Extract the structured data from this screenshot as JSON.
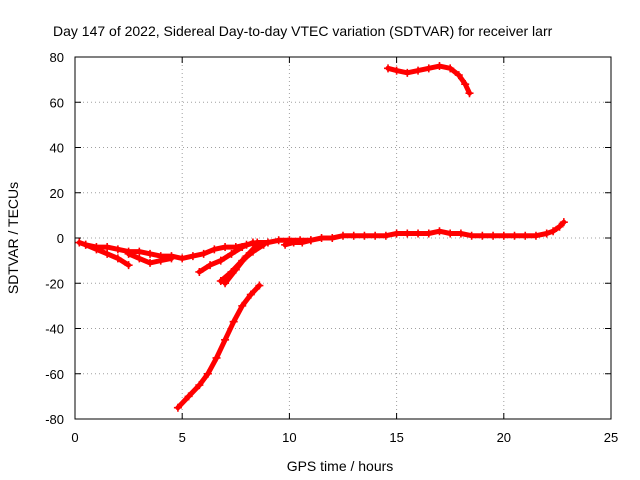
{
  "chart_data": {
    "type": "scatter",
    "title": "Day 147 of 2022, Sidereal Day-to-day VTEC variation (SDTVAR) for receiver larr",
    "xlabel": "GPS time / hours",
    "ylabel": "SDTVAR / TECUs",
    "xlim": [
      0,
      25
    ],
    "ylim": [
      -80,
      80
    ],
    "xticks": [
      0,
      5,
      10,
      15,
      20,
      25
    ],
    "yticks": [
      -80,
      -60,
      -40,
      -20,
      0,
      20,
      40,
      60,
      80
    ],
    "grid": true,
    "marker": "plus",
    "color": "#ff0000",
    "series": [
      {
        "name": "main-band",
        "x": [
          0.2,
          0.5,
          1.0,
          1.5,
          2.0,
          2.5,
          3.0,
          3.5,
          4.0,
          4.5,
          5.0,
          5.5,
          6.0,
          6.5,
          7.0,
          7.5,
          8.0,
          8.5,
          9.0,
          9.5,
          10.0,
          10.5,
          11.0,
          11.5,
          12.0,
          12.5,
          13.0,
          13.5,
          14.0,
          14.5,
          15.0,
          15.5,
          16.0,
          16.5,
          17.0,
          17.5,
          18.0,
          18.5,
          19.0,
          19.5,
          20.0,
          20.5,
          21.0,
          21.5,
          22.0,
          22.3,
          22.6,
          22.8
        ],
        "y": [
          -2,
          -3,
          -4,
          -4,
          -5,
          -6,
          -6,
          -7,
          -8,
          -8,
          -9,
          -8,
          -7,
          -5,
          -4,
          -4,
          -3,
          -2,
          -2,
          -1,
          -1,
          -1,
          -1,
          0,
          0,
          1,
          1,
          1,
          1,
          1,
          2,
          2,
          2,
          2,
          3,
          2,
          2,
          1,
          1,
          1,
          1,
          1,
          1,
          1,
          2,
          3,
          5,
          7
        ]
      },
      {
        "name": "lower-branch-1",
        "x": [
          0.5,
          1.0,
          1.5,
          2.0,
          2.5
        ],
        "y": [
          -3,
          -5,
          -7,
          -9,
          -12
        ]
      },
      {
        "name": "lower-branch-2",
        "x": [
          2.5,
          3.0,
          3.5,
          4.0,
          4.5
        ],
        "y": [
          -7,
          -9,
          -11,
          -10,
          -9
        ]
      },
      {
        "name": "lower-branch-3",
        "x": [
          5.8,
          6.3,
          6.8,
          7.3,
          7.8,
          8.3
        ],
        "y": [
          -15,
          -12,
          -10,
          -7,
          -4,
          -2
        ]
      },
      {
        "name": "lower-branch-4",
        "x": [
          6.8,
          7.3,
          7.8,
          8.3,
          8.8
        ],
        "y": [
          -19,
          -15,
          -10,
          -6,
          -3
        ]
      },
      {
        "name": "lower-branch-5",
        "x": [
          7.0,
          7.5,
          8.0,
          8.5
        ],
        "y": [
          -20,
          -14,
          -8,
          -3
        ]
      },
      {
        "name": "lower-branch-6",
        "x": [
          9.8,
          10.2,
          10.6,
          11.0
        ],
        "y": [
          -3,
          -2,
          -2,
          -1
        ]
      },
      {
        "name": "steep-arc",
        "x": [
          4.8,
          5.3,
          5.8,
          6.2,
          6.6,
          7.0,
          7.4,
          7.8,
          8.2,
          8.6
        ],
        "y": [
          -75,
          -70,
          -65,
          -60,
          -53,
          -45,
          -37,
          -30,
          -25,
          -21
        ]
      },
      {
        "name": "high-arc",
        "x": [
          14.6,
          15.0,
          15.5,
          16.0,
          16.5,
          17.0,
          17.5,
          17.9,
          18.2,
          18.4
        ],
        "y": [
          75,
          74,
          73,
          74,
          75,
          76,
          75,
          72,
          68,
          64
        ]
      }
    ]
  }
}
